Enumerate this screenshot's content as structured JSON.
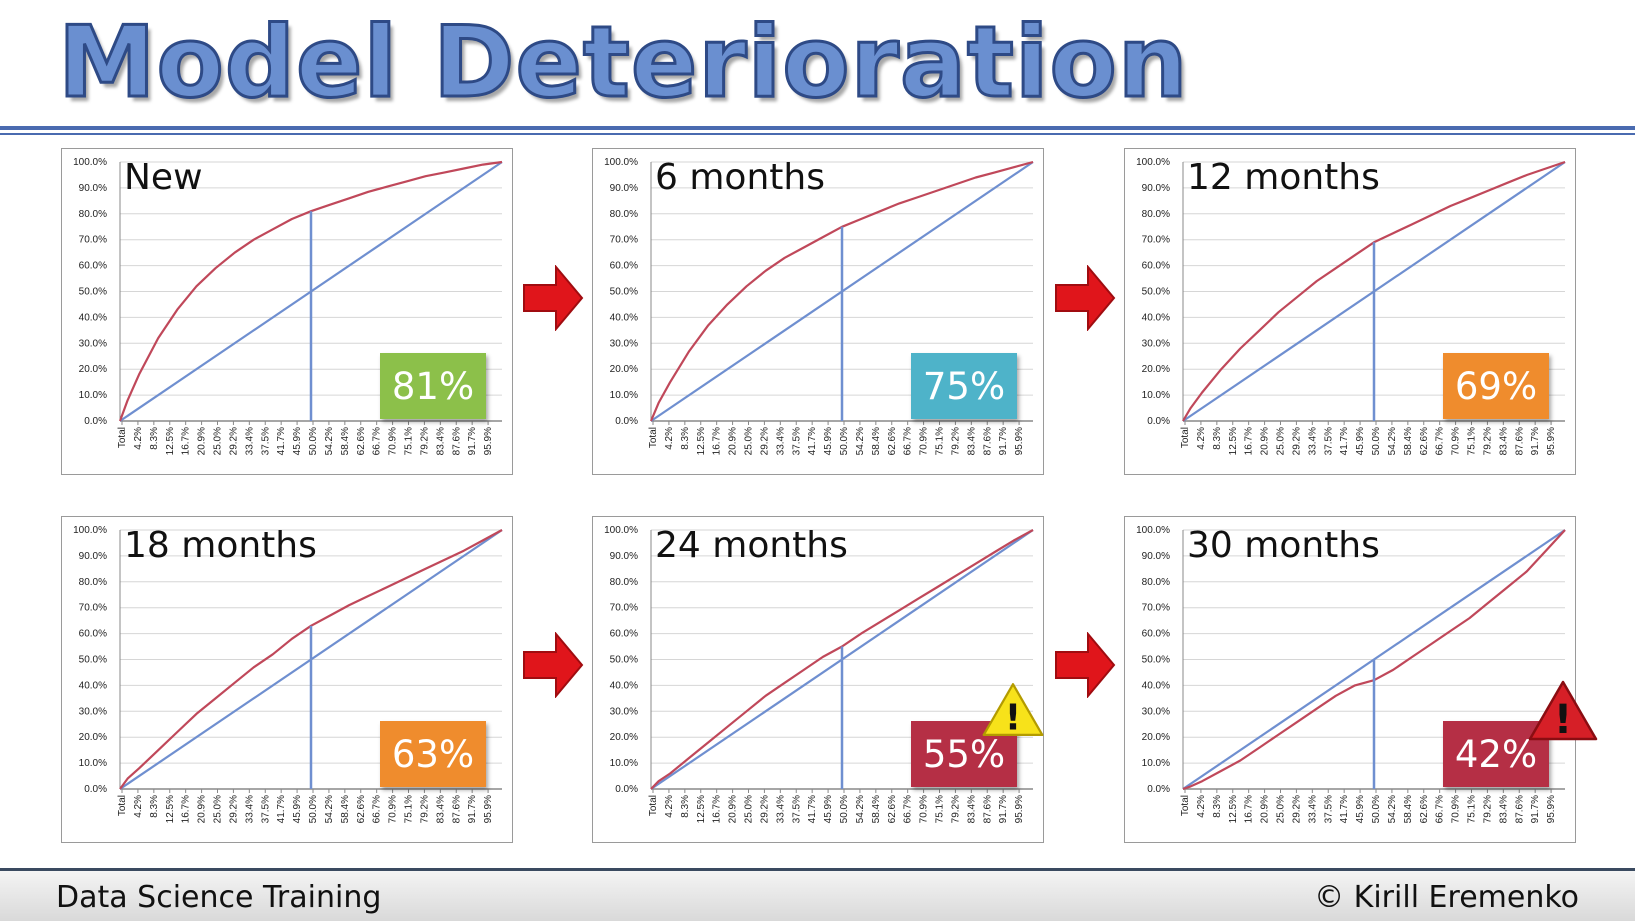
{
  "header": {
    "title": "Model Deterioration"
  },
  "footer": {
    "left": "Data Science Training",
    "right": "© Kirill Eremenko"
  },
  "colors": {
    "model_line": "#c0485a",
    "random_line": "#6f8fd0",
    "cutoff_line": "#6f8fd0"
  },
  "chart_data": [
    {
      "type": "line",
      "title": "New",
      "yticks": [
        "0.0%",
        "10.0%",
        "20.0%",
        "30.0%",
        "40.0%",
        "50.0%",
        "60.0%",
        "70.0%",
        "80.0%",
        "90.0%",
        "100.0%"
      ],
      "xticks": [
        "Total",
        "4.2%",
        "8.3%",
        "12.5%",
        "16.7%",
        "20.9%",
        "25.0%",
        "29.2%",
        "33.4%",
        "37.5%",
        "41.7%",
        "45.9%",
        "50.0%",
        "54.2%",
        "58.4%",
        "62.6%",
        "66.7%",
        "70.9%",
        "75.1%",
        "79.2%",
        "83.4%",
        "87.6%",
        "91.7%",
        "95.9%"
      ],
      "ylim": [
        0,
        100
      ],
      "xlim": [
        0,
        100
      ],
      "cutoff_x": 50,
      "series": [
        {
          "x": [
            0,
            2,
            5,
            10,
            15,
            20,
            25,
            30,
            35,
            40,
            45,
            50,
            55,
            60,
            65,
            70,
            75,
            80,
            85,
            90,
            95,
            100
          ],
          "y": [
            0,
            8,
            18,
            32,
            43,
            52,
            59,
            65,
            70,
            74,
            78,
            81,
            83.5,
            86,
            88.5,
            90.5,
            92.5,
            94.5,
            96,
            97.5,
            99,
            100
          ]
        }
      ],
      "badge": "81%",
      "badge_color": "#8cc04a",
      "warning": ""
    },
    {
      "type": "line",
      "title": "6 months",
      "yticks": [
        "0.0%",
        "10.0%",
        "20.0%",
        "30.0%",
        "40.0%",
        "50.0%",
        "60.0%",
        "70.0%",
        "80.0%",
        "90.0%",
        "100.0%"
      ],
      "xticks": [
        "Total",
        "4.2%",
        "8.3%",
        "12.5%",
        "16.7%",
        "20.9%",
        "25.0%",
        "29.2%",
        "33.4%",
        "37.5%",
        "41.7%",
        "45.9%",
        "50.0%",
        "54.2%",
        "58.4%",
        "62.6%",
        "66.7%",
        "70.9%",
        "75.1%",
        "79.2%",
        "83.4%",
        "87.6%",
        "91.7%",
        "95.9%"
      ],
      "ylim": [
        0,
        100
      ],
      "xlim": [
        0,
        100
      ],
      "cutoff_x": 50,
      "series": [
        {
          "x": [
            0,
            2,
            5,
            10,
            15,
            20,
            25,
            30,
            35,
            40,
            45,
            50,
            55,
            60,
            65,
            70,
            75,
            80,
            85,
            90,
            95,
            100
          ],
          "y": [
            0,
            7,
            15,
            27,
            37,
            45,
            52,
            58,
            63,
            67,
            71,
            75,
            78,
            81,
            84,
            86.5,
            89,
            91.5,
            94,
            96,
            98,
            100
          ]
        }
      ],
      "badge": "75%",
      "badge_color": "#4eb3c9",
      "warning": ""
    },
    {
      "type": "line",
      "title": "12 months",
      "yticks": [
        "0.0%",
        "10.0%",
        "20.0%",
        "30.0%",
        "40.0%",
        "50.0%",
        "60.0%",
        "70.0%",
        "80.0%",
        "90.0%",
        "100.0%"
      ],
      "xticks": [
        "Total",
        "4.2%",
        "8.3%",
        "12.5%",
        "16.7%",
        "20.9%",
        "25.0%",
        "29.2%",
        "33.4%",
        "37.5%",
        "41.7%",
        "45.9%",
        "50.0%",
        "54.2%",
        "58.4%",
        "62.6%",
        "66.7%",
        "70.9%",
        "75.1%",
        "79.2%",
        "83.4%",
        "87.6%",
        "91.7%",
        "95.9%"
      ],
      "ylim": [
        0,
        100
      ],
      "xlim": [
        0,
        100
      ],
      "cutoff_x": 50,
      "series": [
        {
          "x": [
            0,
            2,
            5,
            10,
            15,
            20,
            25,
            30,
            35,
            40,
            45,
            50,
            55,
            60,
            65,
            70,
            75,
            80,
            85,
            90,
            95,
            100
          ],
          "y": [
            0,
            5,
            11,
            20,
            28,
            35,
            42,
            48,
            54,
            59,
            64,
            69,
            72.5,
            76,
            79.5,
            83,
            86,
            89,
            92,
            95,
            97.5,
            100
          ]
        }
      ],
      "badge": "69%",
      "badge_color": "#ef8c2d",
      "warning": ""
    },
    {
      "type": "line",
      "title": "18 months",
      "yticks": [
        "0.0%",
        "10.0%",
        "20.0%",
        "30.0%",
        "40.0%",
        "50.0%",
        "60.0%",
        "70.0%",
        "80.0%",
        "90.0%",
        "100.0%"
      ],
      "xticks": [
        "Total",
        "4.2%",
        "8.3%",
        "12.5%",
        "16.7%",
        "20.9%",
        "25.0%",
        "29.2%",
        "33.4%",
        "37.5%",
        "41.7%",
        "45.9%",
        "50.0%",
        "54.2%",
        "58.4%",
        "62.6%",
        "66.7%",
        "70.9%",
        "75.1%",
        "79.2%",
        "83.4%",
        "87.6%",
        "91.7%",
        "95.9%"
      ],
      "ylim": [
        0,
        100
      ],
      "xlim": [
        0,
        100
      ],
      "cutoff_x": 50,
      "series": [
        {
          "x": [
            0,
            2,
            5,
            10,
            15,
            20,
            25,
            30,
            35,
            40,
            45,
            50,
            55,
            60,
            65,
            70,
            75,
            80,
            85,
            90,
            95,
            100
          ],
          "y": [
            0,
            4,
            8,
            15,
            22,
            29,
            35,
            41,
            47,
            52,
            58,
            63,
            67,
            71,
            74.5,
            78,
            81.5,
            85,
            88.5,
            92,
            96,
            100
          ]
        }
      ],
      "badge": "63%",
      "badge_color": "#ef8c2d",
      "warning": ""
    },
    {
      "type": "line",
      "title": "24 months",
      "yticks": [
        "0.0%",
        "10.0%",
        "20.0%",
        "30.0%",
        "40.0%",
        "50.0%",
        "60.0%",
        "70.0%",
        "80.0%",
        "90.0%",
        "100.0%"
      ],
      "xticks": [
        "Total",
        "4.2%",
        "8.3%",
        "12.5%",
        "16.7%",
        "20.9%",
        "25.0%",
        "29.2%",
        "33.4%",
        "37.5%",
        "41.7%",
        "45.9%",
        "50.0%",
        "54.2%",
        "58.4%",
        "62.6%",
        "66.7%",
        "70.9%",
        "75.1%",
        "79.2%",
        "83.4%",
        "87.6%",
        "91.7%",
        "95.9%"
      ],
      "ylim": [
        0,
        100
      ],
      "xlim": [
        0,
        100
      ],
      "cutoff_x": 50,
      "series": [
        {
          "x": [
            0,
            2,
            5,
            10,
            15,
            20,
            25,
            30,
            35,
            40,
            45,
            50,
            55,
            60,
            65,
            70,
            75,
            80,
            85,
            90,
            95,
            100
          ],
          "y": [
            0,
            3,
            6,
            12,
            18,
            24,
            30,
            36,
            41,
            46,
            51,
            55,
            60,
            64.5,
            69,
            73.5,
            78,
            82.5,
            87,
            91.5,
            96,
            100
          ]
        }
      ],
      "badge": "55%",
      "badge_color": "#b52f45",
      "warning": "!"
    },
    {
      "type": "line",
      "title": "30 months",
      "yticks": [
        "0.0%",
        "10.0%",
        "20.0%",
        "30.0%",
        "40.0%",
        "50.0%",
        "60.0%",
        "70.0%",
        "80.0%",
        "90.0%",
        "100.0%"
      ],
      "xticks": [
        "Total",
        "4.2%",
        "8.3%",
        "12.5%",
        "16.7%",
        "20.9%",
        "25.0%",
        "29.2%",
        "33.4%",
        "37.5%",
        "41.7%",
        "45.9%",
        "50.0%",
        "54.2%",
        "58.4%",
        "62.6%",
        "66.7%",
        "70.9%",
        "75.1%",
        "79.2%",
        "83.4%",
        "87.6%",
        "91.7%",
        "95.9%"
      ],
      "ylim": [
        0,
        100
      ],
      "xlim": [
        0,
        100
      ],
      "cutoff_x": 50,
      "series": [
        {
          "x": [
            0,
            2,
            5,
            10,
            15,
            20,
            25,
            30,
            35,
            40,
            45,
            50,
            55,
            60,
            65,
            70,
            75,
            80,
            85,
            90,
            95,
            100
          ],
          "y": [
            0,
            1,
            3,
            7,
            11,
            16,
            21,
            26,
            31,
            36,
            40,
            42,
            46,
            51,
            56,
            61,
            66,
            72,
            78,
            84,
            92,
            100
          ]
        }
      ],
      "badge": "42%",
      "badge_color": "#b52f45",
      "warning": "!"
    }
  ]
}
